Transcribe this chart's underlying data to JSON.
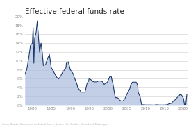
{
  "title": "Effective federal funds rate",
  "title_fontsize": 7.5,
  "source_text": "Source: Board of Governors of the Federal Reserve System · Get the data · Created with Datawrapper",
  "line_color": "#1a3a6b",
  "fill_color": "#aabbdd",
  "bg_color": "#ffffff",
  "grid_color": "#cccccc",
  "xlim": [
    1978,
    2021
  ],
  "ylim": [
    0,
    20
  ],
  "yticks": [
    0,
    2,
    4,
    6,
    8,
    10,
    12,
    14,
    16,
    18,
    20
  ],
  "ytick_labels": [
    "0%",
    "2%",
    "4%",
    "6%",
    "8%",
    "10%",
    "12%",
    "14%",
    "16%",
    "18%",
    "20%"
  ],
  "xticks": [
    1980,
    1985,
    1990,
    1995,
    2000,
    2005,
    2010,
    2015,
    2020
  ],
  "data": [
    [
      1978.0,
      7.0
    ],
    [
      1978.5,
      8.0
    ],
    [
      1979.0,
      10.5
    ],
    [
      1979.5,
      13.5
    ],
    [
      1980.0,
      14.0
    ],
    [
      1980.2,
      17.5
    ],
    [
      1980.4,
      9.5
    ],
    [
      1980.6,
      15.0
    ],
    [
      1981.0,
      16.5
    ],
    [
      1981.3,
      19.0
    ],
    [
      1981.6,
      15.5
    ],
    [
      1981.9,
      12.0
    ],
    [
      1982.3,
      14.0
    ],
    [
      1982.6,
      12.0
    ],
    [
      1982.9,
      9.0
    ],
    [
      1983.0,
      9.0
    ],
    [
      1983.5,
      9.2
    ],
    [
      1984.0,
      10.5
    ],
    [
      1984.5,
      11.5
    ],
    [
      1984.9,
      9.0
    ],
    [
      1985.0,
      8.5
    ],
    [
      1985.5,
      7.8
    ],
    [
      1986.0,
      7.0
    ],
    [
      1986.5,
      6.3
    ],
    [
      1986.9,
      6.0
    ],
    [
      1987.0,
      6.0
    ],
    [
      1987.5,
      6.6
    ],
    [
      1988.0,
      7.5
    ],
    [
      1988.5,
      8.0
    ],
    [
      1988.9,
      8.5
    ],
    [
      1989.0,
      9.5
    ],
    [
      1989.5,
      9.8
    ],
    [
      1989.9,
      8.5
    ],
    [
      1990.0,
      8.1
    ],
    [
      1990.5,
      7.5
    ],
    [
      1990.9,
      7.0
    ],
    [
      1991.0,
      6.5
    ],
    [
      1991.5,
      5.5
    ],
    [
      1991.9,
      4.5
    ],
    [
      1992.0,
      4.0
    ],
    [
      1992.5,
      3.5
    ],
    [
      1992.9,
      3.0
    ],
    [
      1993.0,
      3.0
    ],
    [
      1993.5,
      3.0
    ],
    [
      1993.9,
      3.0
    ],
    [
      1994.0,
      3.2
    ],
    [
      1994.5,
      5.0
    ],
    [
      1994.9,
      5.5
    ],
    [
      1995.0,
      6.0
    ],
    [
      1995.5,
      5.8
    ],
    [
      1995.9,
      5.5
    ],
    [
      1996.0,
      5.4
    ],
    [
      1996.5,
      5.3
    ],
    [
      1996.9,
      5.3
    ],
    [
      1997.0,
      5.3
    ],
    [
      1997.5,
      5.5
    ],
    [
      1997.9,
      5.5
    ],
    [
      1998.0,
      5.5
    ],
    [
      1998.5,
      5.4
    ],
    [
      1998.9,
      5.0
    ],
    [
      1999.0,
      4.75
    ],
    [
      1999.5,
      5.0
    ],
    [
      1999.9,
      5.3
    ],
    [
      2000.0,
      5.5
    ],
    [
      2000.5,
      6.5
    ],
    [
      2000.9,
      6.5
    ],
    [
      2001.0,
      6.0
    ],
    [
      2001.3,
      5.0
    ],
    [
      2001.6,
      3.5
    ],
    [
      2001.9,
      2.0
    ],
    [
      2002.0,
      1.75
    ],
    [
      2002.5,
      1.75
    ],
    [
      2002.9,
      1.5
    ],
    [
      2003.0,
      1.25
    ],
    [
      2003.5,
      1.0
    ],
    [
      2003.9,
      1.0
    ],
    [
      2004.0,
      1.0
    ],
    [
      2004.5,
      1.5
    ],
    [
      2004.9,
      2.25
    ],
    [
      2005.0,
      2.5
    ],
    [
      2005.5,
      3.25
    ],
    [
      2005.9,
      4.0
    ],
    [
      2006.0,
      4.5
    ],
    [
      2006.5,
      5.25
    ],
    [
      2006.9,
      5.25
    ],
    [
      2007.0,
      5.25
    ],
    [
      2007.5,
      5.25
    ],
    [
      2007.9,
      4.5
    ],
    [
      2008.0,
      3.0
    ],
    [
      2008.5,
      2.0
    ],
    [
      2008.9,
      0.25
    ],
    [
      2009.0,
      0.15
    ],
    [
      2009.5,
      0.15
    ],
    [
      2009.9,
      0.12
    ],
    [
      2010.0,
      0.1
    ],
    [
      2010.5,
      0.1
    ],
    [
      2010.9,
      0.1
    ],
    [
      2011.0,
      0.1
    ],
    [
      2011.5,
      0.1
    ],
    [
      2011.9,
      0.07
    ],
    [
      2012.0,
      0.07
    ],
    [
      2012.5,
      0.1
    ],
    [
      2012.9,
      0.16
    ],
    [
      2013.0,
      0.14
    ],
    [
      2013.5,
      0.1
    ],
    [
      2013.9,
      0.09
    ],
    [
      2014.0,
      0.09
    ],
    [
      2014.5,
      0.09
    ],
    [
      2014.9,
      0.09
    ],
    [
      2015.0,
      0.1
    ],
    [
      2015.5,
      0.13
    ],
    [
      2015.9,
      0.2
    ],
    [
      2016.0,
      0.3
    ],
    [
      2016.5,
      0.4
    ],
    [
      2016.9,
      0.5
    ],
    [
      2017.0,
      0.66
    ],
    [
      2017.5,
      1.1
    ],
    [
      2017.9,
      1.3
    ],
    [
      2018.0,
      1.5
    ],
    [
      2018.5,
      1.9
    ],
    [
      2018.9,
      2.2
    ],
    [
      2019.0,
      2.4
    ],
    [
      2019.5,
      2.35
    ],
    [
      2019.9,
      1.75
    ],
    [
      2020.0,
      1.58
    ],
    [
      2020.3,
      0.05
    ],
    [
      2020.6,
      0.05
    ],
    [
      2020.9,
      2.4
    ]
  ]
}
